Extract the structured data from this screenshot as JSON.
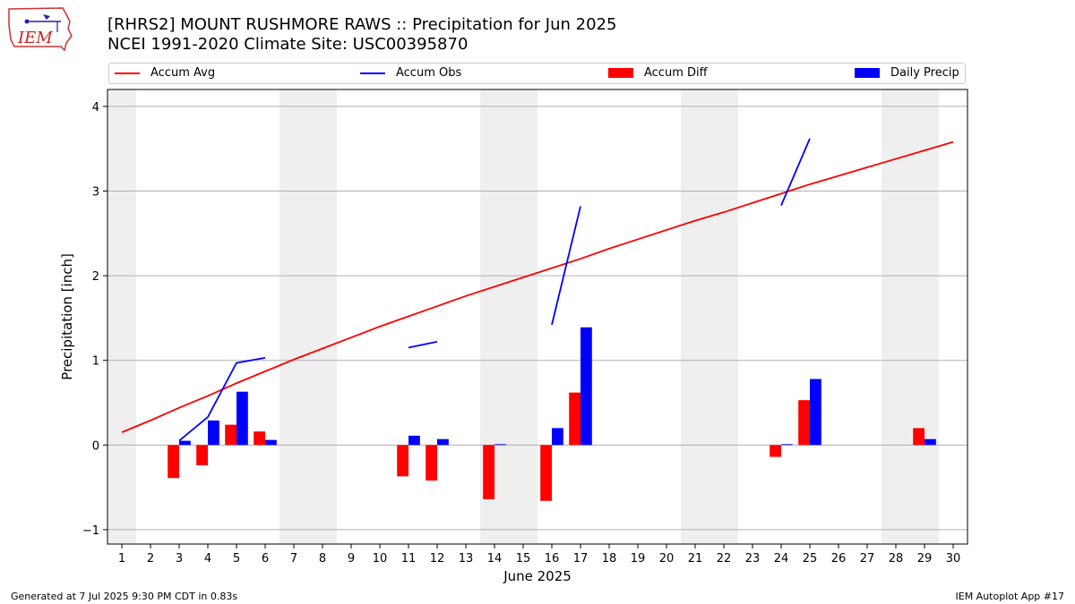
{
  "title_line1": "[RHRS2] MOUNT RUSHMORE RAWS :: Precipitation for Jun 2025",
  "title_line2": "NCEI 1991-2020 Climate Site: USC00395870",
  "logo_text": "IEM",
  "footer_left": "Generated at 7 Jul 2025 9:30 PM CDT in 0.83s",
  "footer_right": "IEM Autoplot App #17",
  "colors": {
    "avg": "#ff0000",
    "obs": "#0000ff",
    "diff": "#ff0000",
    "daily": "#0000ff",
    "weekend": "#efefef",
    "grid": "#b0b0b0"
  },
  "chart_data": {
    "type": "bar",
    "xlabel": "June 2025",
    "ylabel": "Precipitation [inch]",
    "xlim": [
      0.5,
      30.5
    ],
    "ylim": [
      -1.17,
      4.2
    ],
    "yticks": [
      -1,
      0,
      1,
      2,
      3,
      4
    ],
    "grid": true,
    "legend_position": "top",
    "categories": [
      1,
      2,
      3,
      4,
      5,
      6,
      7,
      8,
      9,
      10,
      11,
      12,
      13,
      14,
      15,
      16,
      17,
      18,
      19,
      20,
      21,
      22,
      23,
      24,
      25,
      26,
      27,
      28,
      29,
      30
    ],
    "weekend_days": [
      1,
      7,
      8,
      14,
      15,
      21,
      22,
      28,
      29
    ],
    "series": [
      {
        "name": "Accum Avg",
        "kind": "line",
        "values": [
          0.15,
          0.29,
          0.44,
          0.58,
          0.73,
          0.87,
          1.01,
          1.14,
          1.27,
          1.4,
          1.52,
          1.64,
          1.76,
          1.87,
          1.98,
          2.09,
          2.2,
          2.32,
          2.43,
          2.54,
          2.65,
          2.75,
          2.86,
          2.97,
          3.08,
          3.18,
          3.28,
          3.38,
          3.48,
          3.58
        ]
      },
      {
        "name": "Accum Obs",
        "kind": "line",
        "values": [
          null,
          null,
          0.05,
          0.33,
          0.97,
          1.03,
          null,
          null,
          null,
          null,
          1.15,
          1.22,
          null,
          null,
          null,
          1.42,
          2.82,
          null,
          null,
          null,
          null,
          null,
          null,
          2.83,
          3.62,
          null,
          null,
          null,
          null,
          null
        ]
      },
      {
        "name": "Accum Diff",
        "kind": "bar",
        "values": [
          null,
          null,
          -0.39,
          -0.24,
          0.24,
          0.16,
          null,
          null,
          null,
          null,
          -0.37,
          -0.42,
          null,
          -0.64,
          null,
          -0.66,
          0.62,
          null,
          null,
          null,
          null,
          null,
          null,
          -0.14,
          0.53,
          null,
          null,
          null,
          0.2,
          null
        ]
      },
      {
        "name": "Daily Precip",
        "kind": "bar",
        "values": [
          null,
          null,
          0.05,
          0.29,
          0.63,
          0.06,
          null,
          null,
          null,
          null,
          0.11,
          0.07,
          null,
          0.01,
          null,
          0.2,
          1.39,
          null,
          null,
          null,
          null,
          null,
          null,
          0.01,
          0.78,
          null,
          null,
          null,
          0.07,
          null
        ]
      }
    ]
  }
}
